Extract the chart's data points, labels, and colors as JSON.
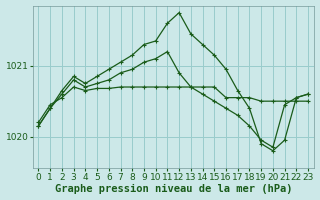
{
  "bg_color": "#cce8e8",
  "grid_color": "#99cccc",
  "line_color": "#1a5c1a",
  "title": "Graphe pression niveau de la mer (hPa)",
  "xlim": [
    -0.5,
    23.5
  ],
  "ylim": [
    1019.55,
    1021.85
  ],
  "yticks": [
    1020,
    1021
  ],
  "xticks": [
    0,
    1,
    2,
    3,
    4,
    5,
    6,
    7,
    8,
    9,
    10,
    11,
    12,
    13,
    14,
    15,
    16,
    17,
    18,
    19,
    20,
    21,
    22,
    23
  ],
  "series1": [
    1020.2,
    1020.45,
    1020.55,
    1020.7,
    1020.65,
    1020.68,
    1020.68,
    1020.7,
    1020.7,
    1020.7,
    1020.7,
    1020.7,
    1020.7,
    1020.7,
    1020.7,
    1020.7,
    1020.55,
    1020.55,
    1020.55,
    1020.5,
    1020.5,
    1020.5,
    1020.5,
    1020.5
  ],
  "series2": [
    1020.15,
    1020.4,
    1020.65,
    1020.85,
    1020.75,
    1020.85,
    1020.95,
    1021.05,
    1021.15,
    1021.3,
    1021.35,
    1021.6,
    1021.75,
    1021.45,
    1021.3,
    1021.15,
    1020.95,
    1020.65,
    1020.4,
    1019.9,
    1019.8,
    1019.95,
    1020.55,
    1020.6
  ],
  "series3": [
    1020.15,
    1020.4,
    1020.6,
    1020.8,
    1020.7,
    1020.75,
    1020.8,
    1020.9,
    1020.95,
    1021.05,
    1021.1,
    1021.2,
    1020.9,
    1020.7,
    1020.6,
    1020.5,
    1020.4,
    1020.3,
    1020.15,
    1019.95,
    1019.85,
    1020.45,
    1020.55,
    1020.6
  ],
  "title_fontsize": 7.5,
  "tick_fontsize": 6.5
}
